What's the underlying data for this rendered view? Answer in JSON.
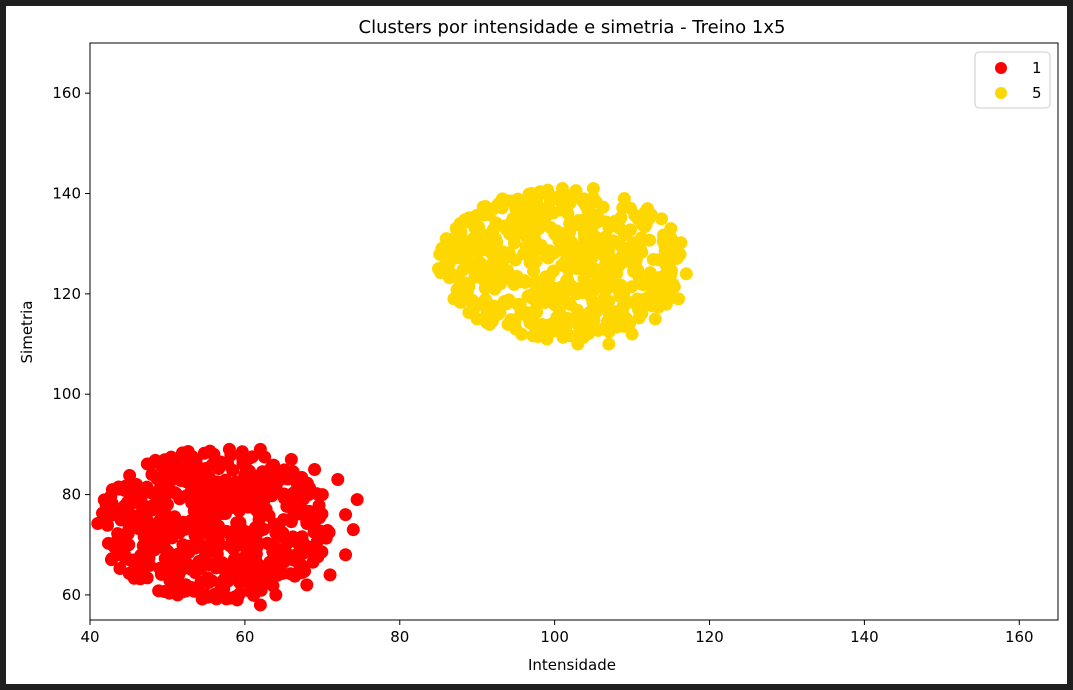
{
  "chart_data": {
    "type": "scatter",
    "title": "Clusters por intensidade e simetria - Treino 1x5",
    "xlabel": "Intensidade",
    "ylabel": "Simetria",
    "xlim": [
      40,
      165
    ],
    "ylim": [
      55,
      170
    ],
    "xticks": [
      40,
      60,
      80,
      100,
      120,
      140,
      160
    ],
    "yticks": [
      60,
      80,
      100,
      120,
      140,
      160
    ],
    "grid": false,
    "legend_position": "top-right",
    "series": [
      {
        "name": "1",
        "color": "#ff0000",
        "center": [
          56,
          74
        ],
        "radius": [
          15,
          15
        ],
        "count": 600,
        "points": [
          [
            44.5,
            76
          ],
          [
            45,
            70
          ],
          [
            46,
            82
          ],
          [
            47,
            67
          ],
          [
            48,
            84
          ],
          [
            50,
            64
          ],
          [
            52,
            62
          ],
          [
            53,
            86
          ],
          [
            55,
            60
          ],
          [
            56,
            88
          ],
          [
            58,
            89
          ],
          [
            59,
            59
          ],
          [
            62,
            58
          ],
          [
            62,
            89
          ],
          [
            64,
            60
          ],
          [
            66,
            87
          ],
          [
            68,
            62
          ],
          [
            69,
            85
          ],
          [
            71,
            64
          ],
          [
            72,
            83
          ],
          [
            73,
            68
          ],
          [
            74,
            73
          ],
          [
            74.5,
            79
          ],
          [
            73,
            76
          ],
          [
            70,
            80
          ],
          [
            67,
            70
          ],
          [
            65,
            75
          ],
          [
            60,
            82
          ],
          [
            57,
            66
          ],
          [
            52,
            70
          ],
          [
            50,
            78
          ],
          [
            48,
            73
          ]
        ]
      },
      {
        "name": "5",
        "color": "#ffd700",
        "center": [
          101,
          126
        ],
        "radius": [
          16,
          15
        ],
        "count": 600,
        "points": [
          [
            85,
            125
          ],
          [
            86,
            131
          ],
          [
            87,
            119
          ],
          [
            89,
            135
          ],
          [
            90,
            115
          ],
          [
            93,
            138
          ],
          [
            95,
            113
          ],
          [
            97,
            140
          ],
          [
            99,
            111
          ],
          [
            101,
            141
          ],
          [
            103,
            110
          ],
          [
            105,
            141
          ],
          [
            107,
            110
          ],
          [
            109,
            139
          ],
          [
            110,
            112
          ],
          [
            112,
            137
          ],
          [
            113,
            115
          ],
          [
            115,
            133
          ],
          [
            116,
            119
          ],
          [
            117,
            124
          ],
          [
            116,
            128
          ],
          [
            114,
            121
          ],
          [
            111,
            130
          ],
          [
            108,
            124
          ],
          [
            105,
            118
          ],
          [
            102,
            133
          ],
          [
            99,
            120
          ],
          [
            96,
            128
          ],
          [
            93,
            122
          ],
          [
            91,
            130
          ]
        ]
      }
    ]
  }
}
